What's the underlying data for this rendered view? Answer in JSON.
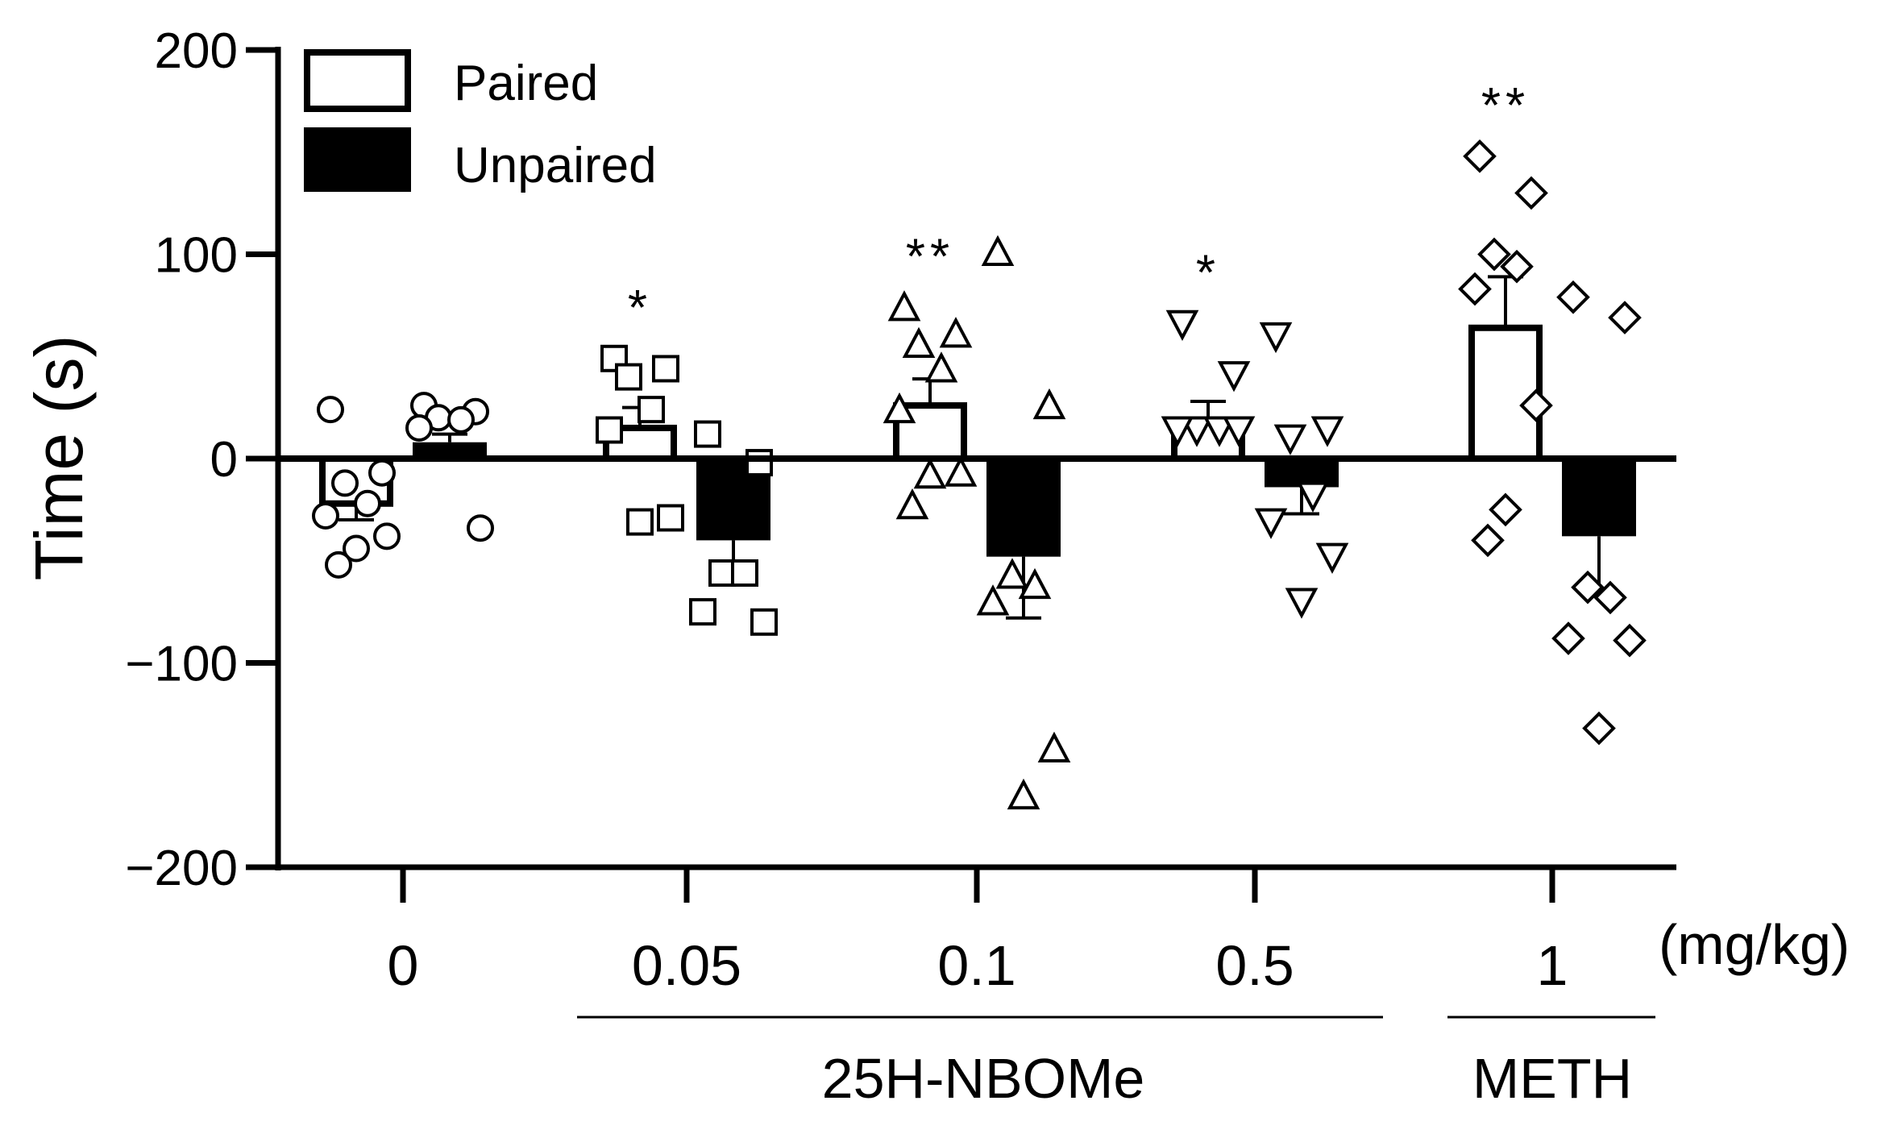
{
  "chart_data": {
    "type": "bar",
    "ylabel": "Time (s)",
    "ylim": [
      -200,
      200
    ],
    "yticks": [
      200,
      100,
      0,
      -100,
      -200
    ],
    "ytick_labels": [
      "200",
      "100",
      "0",
      "−100",
      "−200"
    ],
    "unit_label": "(mg/kg)",
    "categories": [
      "0",
      "0.05",
      "0.1",
      "0.5",
      "1"
    ],
    "groups": [
      {
        "label": "25H-NBOMe",
        "categories": [
          "0.05",
          "0.1",
          "0.5"
        ]
      },
      {
        "label": "METH",
        "categories": [
          "1"
        ]
      }
    ],
    "legend": [
      {
        "name": "Paired",
        "fill": "#ffffff"
      },
      {
        "name": "Unpaired",
        "fill": "#000000"
      }
    ],
    "series": [
      {
        "name": "Paired",
        "fill": "#ffffff",
        "values": [
          -22,
          15,
          26,
          19,
          64
        ],
        "errors": [
          8,
          10,
          13,
          9,
          25
        ],
        "significance": [
          "",
          "*",
          "**",
          "*",
          "**"
        ],
        "points": [
          [
            24,
            -7,
            -12,
            -22,
            -28,
            -38,
            -44,
            -52
          ],
          [
            49,
            44,
            40,
            24,
            14,
            -29,
            -31
          ],
          [
            74,
            61,
            56,
            44,
            24,
            -7,
            -8,
            -23
          ],
          [
            66,
            41,
            14,
            14,
            14,
            14
          ],
          [
            148,
            130,
            100,
            94,
            83,
            26,
            -25,
            -40
          ]
        ],
        "markers": [
          "circle",
          "square",
          "triangle-up",
          "triangle-down",
          "diamond"
        ]
      },
      {
        "name": "Unpaired",
        "fill": "#000000",
        "values": [
          8,
          -40,
          -48,
          -14,
          -38
        ],
        "errors": [
          4,
          12,
          30,
          13,
          28
        ],
        "significance": [
          "",
          "",
          "",
          "",
          ""
        ],
        "points": [
          [
            26,
            23,
            20,
            19,
            15,
            -34
          ],
          [
            12,
            -2,
            -56,
            -56,
            -75,
            -80
          ],
          [
            101,
            26,
            -57,
            -62,
            -70,
            -142,
            -165
          ],
          [
            60,
            14,
            10,
            -18,
            -31,
            -48,
            -70
          ],
          [
            79,
            69,
            -63,
            -68,
            -88,
            -89,
            -132
          ]
        ],
        "markers": [
          "circle",
          "square",
          "triangle-up",
          "triangle-down",
          "diamond"
        ]
      }
    ]
  }
}
